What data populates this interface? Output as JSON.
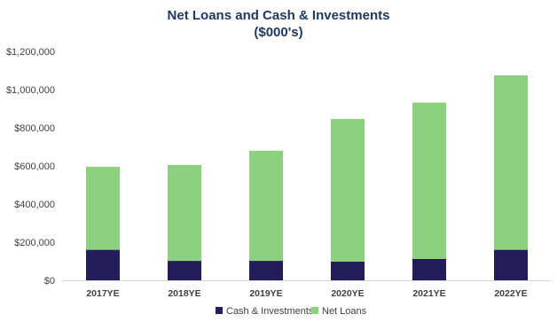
{
  "chart_data": {
    "type": "bar",
    "stacked": true,
    "title": "Net Loans and Cash & Investments",
    "subtitle": "($000's)",
    "xlabel": "",
    "ylabel": "",
    "categories": [
      "2017YE",
      "2018YE",
      "2019YE",
      "2020YE",
      "2021YE",
      "2022YE"
    ],
    "series": [
      {
        "name": "Cash & Investments",
        "color": "#231d5c",
        "values": [
          160000,
          102000,
          102000,
          98000,
          112000,
          160000
        ]
      },
      {
        "name": "Net Loans",
        "color": "#8cd17d",
        "values": [
          435000,
          503000,
          577000,
          748000,
          820000,
          915000
        ]
      }
    ],
    "ylim": [
      0,
      1200000
    ],
    "yticks": [
      0,
      200000,
      400000,
      600000,
      800000,
      1000000,
      1200000
    ],
    "ytick_labels": [
      "$0",
      "$200,000",
      "$400,000",
      "$600,000",
      "$800,000",
      "$1,000,000",
      "$1,200,000"
    ],
    "grid": false,
    "legend_position": "bottom"
  }
}
